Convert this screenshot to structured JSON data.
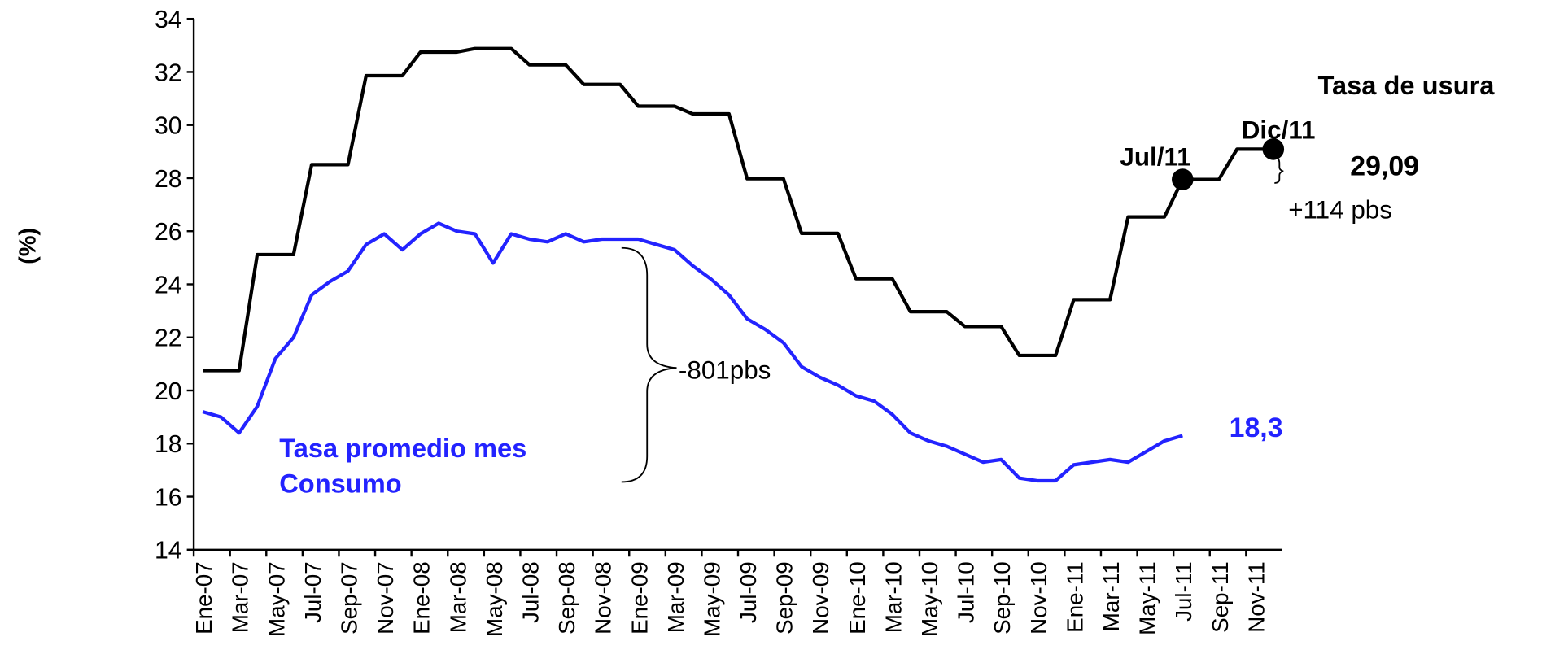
{
  "chart_data": {
    "type": "line",
    "y_label": "(%)",
    "categories": [
      "Ene-07",
      null,
      "Mar-07",
      null,
      "May-07",
      null,
      "Jul-07",
      null,
      "Sep-07",
      null,
      "Nov-07",
      null,
      "Ene-08",
      null,
      "Mar-08",
      null,
      "May-08",
      null,
      "Jul-08",
      null,
      "Sep-08",
      null,
      "Nov-08",
      null,
      "Ene-09",
      null,
      "Mar-09",
      null,
      "May-09",
      null,
      "Jul-09",
      null,
      "Sep-09",
      null,
      "Nov-09",
      null,
      "Ene-10",
      null,
      "Mar-10",
      null,
      "May-10",
      null,
      "Jul-10",
      null,
      "Sep-10",
      null,
      "Nov-10",
      null,
      "Ene-11",
      null,
      "Mar-11",
      null,
      "May-11",
      null,
      "Jul-11",
      null,
      "Sep-11",
      null,
      "Nov-11",
      null
    ],
    "series": [
      {
        "name": "Tasa de usura",
        "color": "#000000",
        "values": [
          20.75,
          20.75,
          20.75,
          25.12,
          25.12,
          25.12,
          28.51,
          28.51,
          28.51,
          31.86,
          31.86,
          31.86,
          32.75,
          32.75,
          32.75,
          32.88,
          32.88,
          32.88,
          32.27,
          32.27,
          32.27,
          31.53,
          31.53,
          31.53,
          30.71,
          30.71,
          30.71,
          30.42,
          30.42,
          30.42,
          27.98,
          27.98,
          27.98,
          25.92,
          25.92,
          25.92,
          24.21,
          24.21,
          24.21,
          22.97,
          22.97,
          22.97,
          22.41,
          22.41,
          22.41,
          21.32,
          21.32,
          21.32,
          23.42,
          23.42,
          23.42,
          26.54,
          26.54,
          26.54,
          27.95,
          27.95,
          27.95,
          29.09,
          29.09,
          29.09
        ],
        "value_labels": [
          null,
          null,
          null,
          null,
          null,
          null,
          null,
          null,
          null,
          null,
          null,
          null,
          null,
          null,
          null,
          null,
          null,
          null,
          null,
          null,
          null,
          null,
          null,
          null,
          null,
          null,
          null,
          null,
          null,
          null,
          null,
          null,
          null,
          null,
          null,
          null,
          null,
          null,
          null,
          null,
          null,
          null,
          null,
          null,
          null,
          null,
          null,
          null,
          null,
          null,
          null,
          null,
          null,
          null,
          null,
          null,
          null,
          null,
          null,
          "29,09"
        ]
      },
      {
        "name": "Tasa promedio mes Consumo",
        "color": "#2323ff",
        "values": [
          19.2,
          19.0,
          18.4,
          19.4,
          21.2,
          22.0,
          23.6,
          24.1,
          24.5,
          25.5,
          25.9,
          25.3,
          25.9,
          26.3,
          26.0,
          25.9,
          24.8,
          25.9,
          25.7,
          25.6,
          25.9,
          25.6,
          25.7,
          25.7,
          25.7,
          25.5,
          25.3,
          24.7,
          24.2,
          23.6,
          22.7,
          22.3,
          21.8,
          20.9,
          20.5,
          20.2,
          19.8,
          19.6,
          19.1,
          18.4,
          18.1,
          17.9,
          17.6,
          17.3,
          17.4,
          16.7,
          16.6,
          16.6,
          17.2,
          17.3,
          17.4,
          17.3,
          17.7,
          18.1,
          18.3,
          null,
          null,
          null,
          null,
          null
        ],
        "value_labels": [
          null,
          null,
          null,
          null,
          null,
          null,
          null,
          null,
          null,
          null,
          null,
          null,
          null,
          null,
          null,
          null,
          null,
          null,
          null,
          null,
          null,
          null,
          null,
          null,
          null,
          null,
          null,
          null,
          null,
          null,
          null,
          null,
          null,
          null,
          null,
          null,
          null,
          null,
          null,
          null,
          null,
          null,
          null,
          null,
          null,
          null,
          null,
          null,
          null,
          null,
          null,
          null,
          null,
          null,
          "18,3",
          null,
          null,
          null,
          null,
          null
        ]
      }
    ],
    "annotations": [
      "Jul/11",
      "Dic/11",
      "+114 pbs",
      "-801pbs"
    ],
    "ylim": [
      14,
      34
    ],
    "yticks": [
      14,
      16,
      18,
      20,
      22,
      24,
      26,
      28,
      30,
      32,
      34
    ],
    "grid": false
  }
}
